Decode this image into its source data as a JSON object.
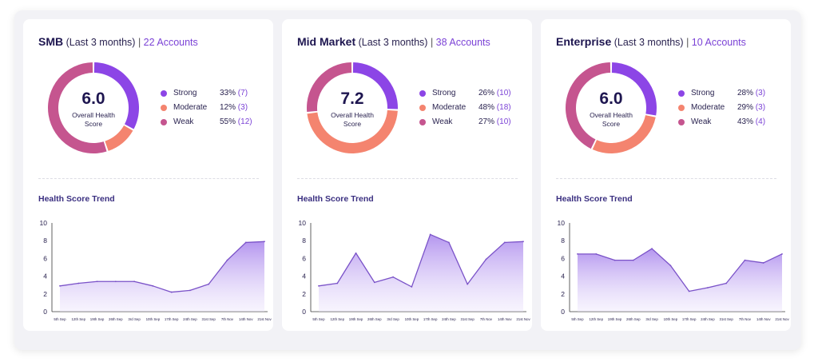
{
  "colors": {
    "strong": "#8c45e6",
    "moderate": "#f4846f",
    "weak": "#c5558f",
    "line": "#7a52c8",
    "accent": "#7b42d6"
  },
  "cards": [
    {
      "segment": "SMB",
      "period": "(Last 3 months)",
      "separator": "|",
      "accounts": "22 Accounts",
      "score": "6.0",
      "score_label": "Overall Health Score",
      "legend": [
        {
          "label": "Strong",
          "pct": "33%",
          "count": "(7)",
          "value": 33,
          "color_key": "strong"
        },
        {
          "label": "Moderate",
          "pct": "12%",
          "count": "(3)",
          "value": 12,
          "color_key": "moderate"
        },
        {
          "label": "Weak",
          "pct": "55%",
          "count": "(12)",
          "value": 55,
          "color_key": "weak"
        }
      ],
      "trend_title": "Health Score Trend"
    },
    {
      "segment": "Mid Market",
      "period": "(Last 3 months)",
      "separator": "|",
      "accounts": "38 Accounts",
      "score": "7.2",
      "score_label": "Overall Health Score",
      "legend": [
        {
          "label": "Strong",
          "pct": "26%",
          "count": "(10)",
          "value": 26,
          "color_key": "strong"
        },
        {
          "label": "Moderate",
          "pct": "48%",
          "count": "(18)",
          "value": 48,
          "color_key": "moderate"
        },
        {
          "label": "Weak",
          "pct": "27%",
          "count": "(10)",
          "value": 27,
          "color_key": "weak"
        }
      ],
      "trend_title": "Health Score Trend"
    },
    {
      "segment": "Enterprise",
      "period": "(Last 3 months)",
      "separator": "|",
      "accounts": "10 Accounts",
      "score": "6.0",
      "score_label": "Overall Health Score",
      "legend": [
        {
          "label": "Strong",
          "pct": "28%",
          "count": "(3)",
          "value": 28,
          "color_key": "strong"
        },
        {
          "label": "Moderate",
          "pct": "29%",
          "count": "(3)",
          "value": 29,
          "color_key": "moderate"
        },
        {
          "label": "Weak",
          "pct": "43%",
          "count": "(4)",
          "value": 43,
          "color_key": "weak"
        }
      ],
      "trend_title": "Health Score Trend"
    }
  ],
  "chart_data": [
    {
      "type": "area",
      "title": "Health Score Trend",
      "categories": [
        "5th Sep",
        "12th Sep",
        "19th Sep",
        "26th Sep",
        "3rd Sep",
        "10th Sep",
        "17th Sep",
        "24th Sep",
        "31st Sep",
        "7th Nov",
        "14th Nov",
        "21st Nov"
      ],
      "ylim": [
        0,
        10
      ],
      "yticks": [
        "0",
        "2",
        "4",
        "6",
        "8",
        "10"
      ],
      "grid": false,
      "series": [
        {
          "values": [
            2.9,
            3.2,
            3.4,
            3.4,
            3.4,
            2.9,
            2.2,
            2.4,
            3.1,
            5.8,
            7.8,
            7.9
          ]
        }
      ]
    },
    {
      "type": "area",
      "title": "Health Score Trend",
      "categories": [
        "5th Sep",
        "12th Sep",
        "19th Sep",
        "26th Sep",
        "3rd Sep",
        "10th Sep",
        "17th Sep",
        "24th Sep",
        "31st Sep",
        "7th Nov",
        "14th Nov",
        "21st Nov"
      ],
      "ylim": [
        0,
        10
      ],
      "yticks": [
        "0",
        "2",
        "4",
        "6",
        "8",
        "10"
      ],
      "grid": false,
      "series": [
        {
          "values": [
            2.9,
            3.2,
            6.6,
            3.3,
            3.9,
            2.8,
            8.7,
            7.8,
            3.1,
            5.9,
            7.8,
            7.9
          ]
        }
      ]
    },
    {
      "type": "area",
      "title": "Health Score Trend",
      "categories": [
        "5th Sep",
        "12th Sep",
        "19th Sep",
        "26th Sep",
        "3rd Sep",
        "10th Sep",
        "17th Sep",
        "24th Sep",
        "31st Sep",
        "7th Nov",
        "14th Nov",
        "21st Nov"
      ],
      "ylim": [
        0,
        10
      ],
      "yticks": [
        "0",
        "2",
        "4",
        "6",
        "8",
        "10"
      ],
      "grid": false,
      "series": [
        {
          "values": [
            6.5,
            6.5,
            5.8,
            5.8,
            7.1,
            5.2,
            2.3,
            2.7,
            3.2,
            5.8,
            5.5,
            6.5
          ]
        }
      ]
    }
  ]
}
